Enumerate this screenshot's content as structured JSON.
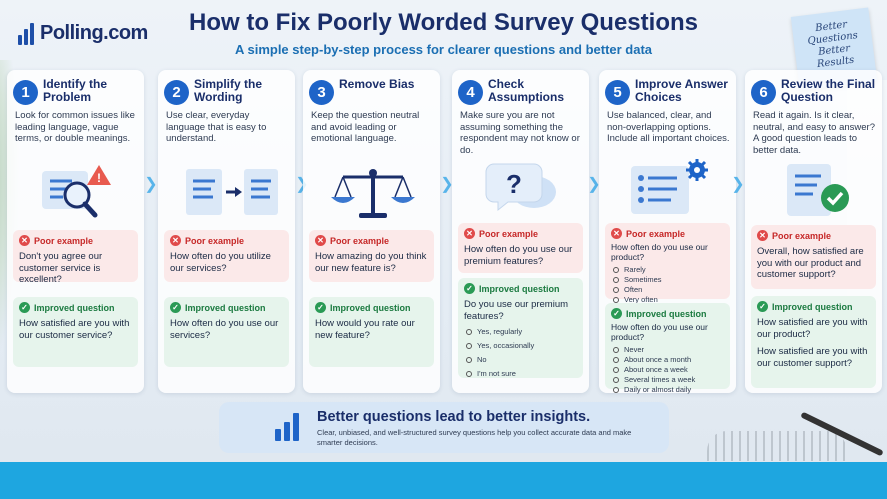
{
  "header": {
    "logo_text": "Polling.com",
    "title": "How to Fix Poorly Worded Survey Questions",
    "subtitle": "A simple step-by-step process for clearer questions and better data",
    "sticky_note": [
      "Better",
      "Questions",
      "Better",
      "Results"
    ]
  },
  "labels": {
    "poor": "Poor example",
    "improved": "Improved question"
  },
  "steps": [
    {
      "num": "1",
      "title": "Identify the Problem",
      "desc": "Look for common issues like leading language, vague terms, or double meanings.",
      "illustration": "magnifier-warning-icon",
      "poor": "Don't you agree our customer service is excellent?",
      "improved": "How satisfied are you with our customer service?"
    },
    {
      "num": "2",
      "title": "Simplify the Wording",
      "desc": "Use clear, everyday language that is easy to understand.",
      "illustration": "documents-arrow-icon",
      "poor": "How often do you utilize our services?",
      "improved": "How often do you use our services?"
    },
    {
      "num": "3",
      "title": "Remove Bias",
      "desc": "Keep the question neutral and avoid leading or emotional language.",
      "illustration": "balance-scale-icon",
      "poor": "How amazing do you think our new feature is?",
      "improved": "How would you rate our new feature?"
    },
    {
      "num": "4",
      "title": "Check Assumptions",
      "desc": "Make sure you are not assuming something the respondent may not know or do.",
      "illustration": "question-bubble-icon",
      "poor": "How often do you use our premium features?",
      "improved": "Do you use our premium features?",
      "improved_options": [
        "Yes, regularly",
        "Yes, occasionally",
        "No",
        "I'm not sure"
      ]
    },
    {
      "num": "5",
      "title": "Improve Answer Choices",
      "desc": "Use balanced, clear, and non-overlapping options. Include all important choices.",
      "illustration": "checklist-gear-icon",
      "poor": "How often do you use our product?",
      "poor_options": [
        "Rarely",
        "Sometimes",
        "Often",
        "Very often"
      ],
      "improved": "How often do you use our product?",
      "improved_options": [
        "Never",
        "About once a month",
        "About once a week",
        "Several times a week",
        "Daily or almost daily"
      ]
    },
    {
      "num": "6",
      "title": "Review the Final Question",
      "desc": "Read it again. Is it clear, neutral, and easy to answer? A good question leads to better data.",
      "illustration": "document-check-icon",
      "poor": "Overall, how satisfied are you with our product and customer support?",
      "improved": "How satisfied are you with our product?",
      "improved_2": "How satisfied are you with our customer support?"
    }
  ],
  "footer": {
    "title": "Better questions lead to better insights.",
    "text": "Clear, unbiased, and well-structured survey questions help you collect accurate data and make smarter decisions."
  },
  "colors": {
    "primary": "#1e64c8",
    "title": "#1a2e6a",
    "poor_bg": "#fbe9e9",
    "good_bg": "#e6f4ec",
    "accent_bar": "#1ea6e0"
  }
}
